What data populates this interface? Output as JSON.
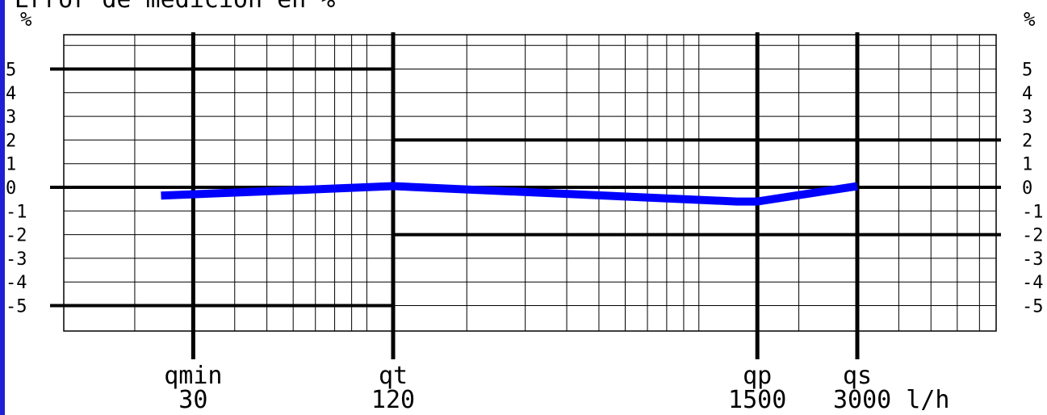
{
  "chart_data": {
    "type": "line",
    "title": "Error de medición en %",
    "ylabel_left": "%",
    "ylabel_right": "%",
    "x_unit": "l/h",
    "x_scale": "log",
    "xlim": [
      10,
      9000
    ],
    "ylim": [
      -6,
      6.5
    ],
    "y_ticks": [
      5,
      4,
      3,
      2,
      1,
      0,
      -1,
      -2,
      -3,
      -4,
      -5
    ],
    "y_tick_labels": [
      "5",
      "4",
      "3",
      "2",
      "1",
      "0",
      "-1",
      "-2",
      "-3",
      "-4",
      "-5"
    ],
    "flow_points": [
      {
        "name": "qmin",
        "value": 30,
        "label": "30"
      },
      {
        "name": "qt",
        "value": 120,
        "label": "120"
      },
      {
        "name": "qp",
        "value": 1500,
        "label": "1500"
      },
      {
        "name": "qs",
        "value": 3000,
        "label": "3000 l/h"
      }
    ],
    "tolerance_limits": [
      {
        "x_from": 10,
        "x_to": 120,
        "upper": 5,
        "lower": -5
      },
      {
        "x_from": 120,
        "x_to": 9000,
        "upper": 2,
        "lower": -2
      }
    ],
    "series": [
      {
        "color": "#0000ff",
        "x": [
          24,
          120,
          1300,
          1500,
          3000
        ],
        "y": [
          -0.35,
          0.05,
          -0.6,
          -0.6,
          0.05
        ]
      }
    ],
    "grid": true
  }
}
